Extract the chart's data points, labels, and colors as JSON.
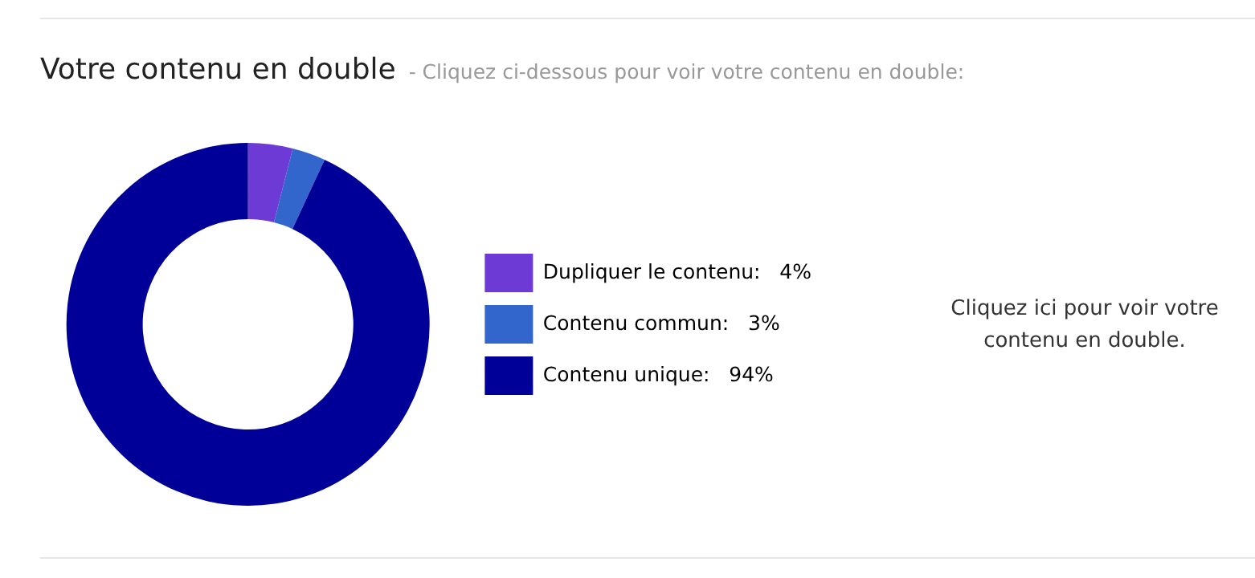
{
  "chart_data": {
    "type": "donut",
    "title": "Votre contenu en double",
    "subtitle": "- Cliquez ci-dessous pour voir votre contenu en double:",
    "categories": [
      "Dupliquer le contenu",
      "Contenu commun",
      "Contenu unique"
    ],
    "values": [
      4,
      3,
      94
    ],
    "colors": [
      "#6e3ad6",
      "#3366cc",
      "#000099"
    ],
    "value_labels": [
      "4%",
      "3%",
      "94%"
    ],
    "legend": "right",
    "annotations": [
      "Cliquez ici pour voir votre contenu en double."
    ]
  }
}
